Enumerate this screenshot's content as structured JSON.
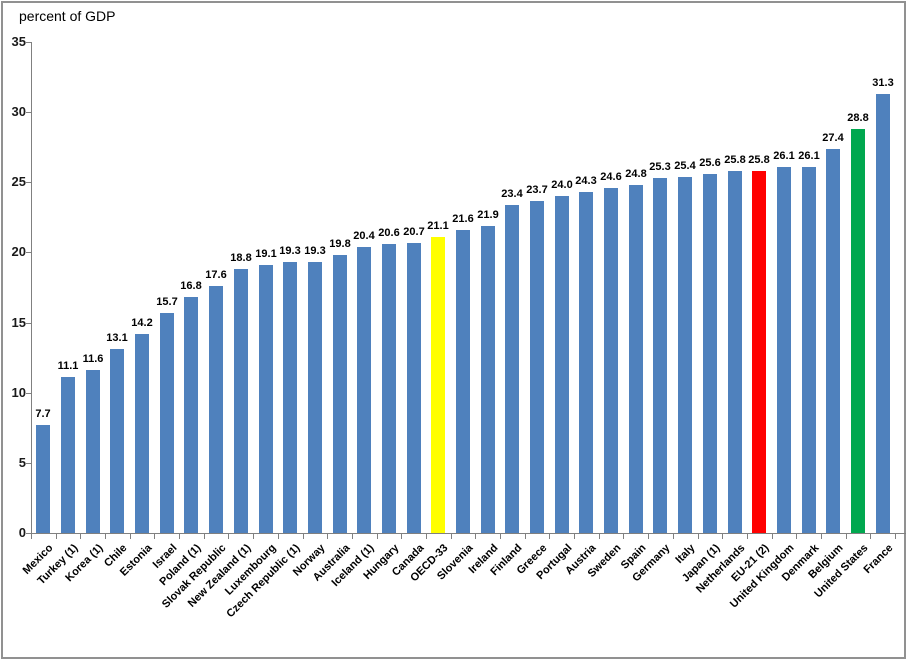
{
  "chart_data": {
    "type": "bar",
    "title": "percent of GDP",
    "xlabel": "",
    "ylabel": "",
    "ylim": [
      0,
      35
    ],
    "ytick_interval": 5,
    "ytick_labels": [
      "0",
      "5",
      "10",
      "15",
      "20",
      "25",
      "30",
      "35"
    ],
    "grid": false,
    "legend_position": "none",
    "categories": [
      "Mexico",
      "Turkey (1)",
      "Korea (1)",
      "Chile",
      "Estonia",
      "Israel",
      "Poland (1)",
      "Slovak Republic",
      "New Zealand (1)",
      "Luxembourg",
      "Czech Republic (1)",
      "Norway",
      "Australia",
      "Iceland (1)",
      "Hungary",
      "Canada",
      "OECD-33",
      "Slovenia",
      "Ireland",
      "Finland",
      "Greece",
      "Portugal",
      "Austria",
      "Sweden",
      "Spain",
      "Germany",
      "Italy",
      "Japan (1)",
      "Netherlands",
      "EU-21 (2)",
      "United Kingdom",
      "Denmark",
      "Belgium",
      "United States",
      "France"
    ],
    "values": [
      7.7,
      11.1,
      11.6,
      13.1,
      14.2,
      15.7,
      16.8,
      17.6,
      18.8,
      19.1,
      19.3,
      19.3,
      19.8,
      20.4,
      20.6,
      20.7,
      21.1,
      21.6,
      21.9,
      23.4,
      23.7,
      24.0,
      24.3,
      24.6,
      24.8,
      25.3,
      25.4,
      25.6,
      25.8,
      25.8,
      26.1,
      26.1,
      27.4,
      28.8,
      31.3
    ],
    "value_labels": [
      "7.7",
      "11.1",
      "11.6",
      "13.1",
      "14.2",
      "15.7",
      "16.8",
      "17.6",
      "18.8",
      "19.1",
      "19.3",
      "19.3",
      "19.8",
      "20.4",
      "20.6",
      "20.7",
      "21.1",
      "21.6",
      "21.9",
      "23.4",
      "23.7",
      "24.0",
      "24.3",
      "24.6",
      "24.8",
      "25.3",
      "25.4",
      "25.6",
      "25.8",
      "25.8",
      "26.1",
      "26.1",
      "27.4",
      "28.8",
      "31.3"
    ],
    "colors": {
      "default_bar": "#4F81BD",
      "highlight_yellow": "#FFFF00",
      "highlight_red": "#FF0000",
      "highlight_green": "#00A84F",
      "axis": "#808080",
      "text": "#000000",
      "frame_border": "#919191"
    },
    "highlighted": [
      {
        "category": "OECD-33",
        "color_key": "highlight_yellow"
      },
      {
        "category": "EU-21 (2)",
        "color_key": "highlight_red"
      },
      {
        "category": "United States",
        "color_key": "highlight_green"
      }
    ]
  }
}
